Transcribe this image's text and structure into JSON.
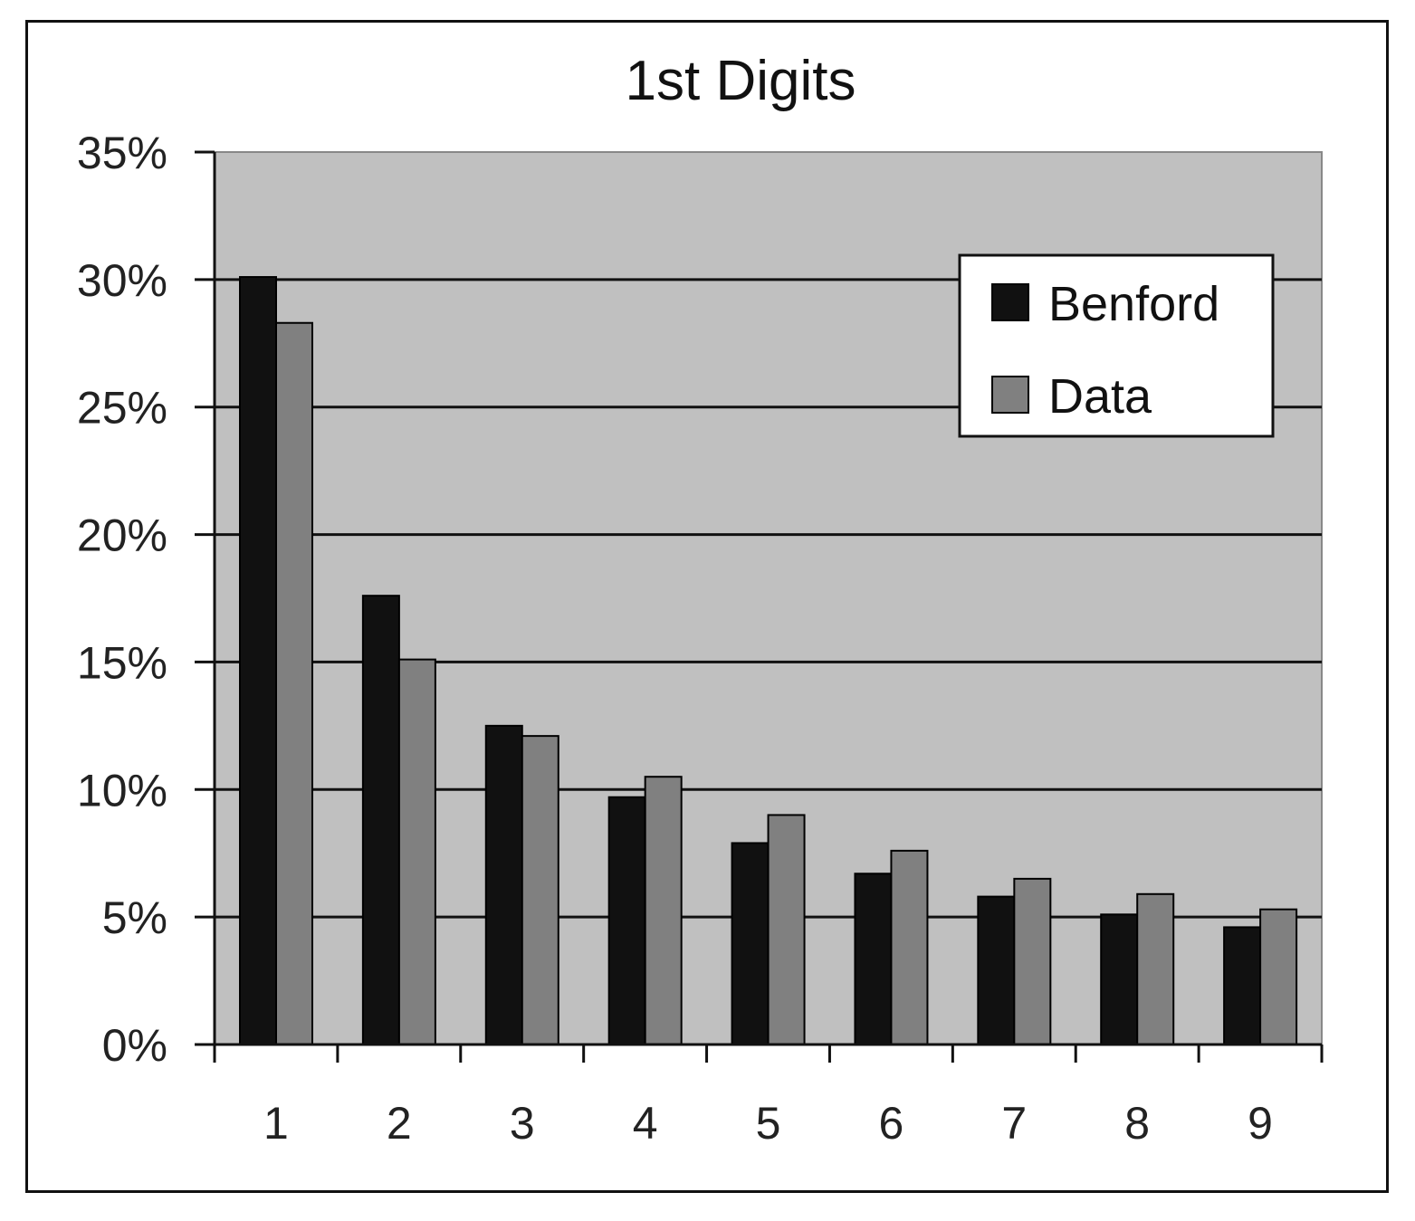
{
  "chart_data": {
    "type": "bar",
    "title": "1st Digits",
    "xlabel": "",
    "ylabel": "",
    "categories": [
      "1",
      "2",
      "3",
      "4",
      "5",
      "6",
      "7",
      "8",
      "9"
    ],
    "series": [
      {
        "name": "Benford",
        "values": [
          30.1,
          17.6,
          12.5,
          9.7,
          7.9,
          6.7,
          5.8,
          5.1,
          4.6
        ]
      },
      {
        "name": "Data",
        "values": [
          28.3,
          15.1,
          12.1,
          10.5,
          9.0,
          7.6,
          6.5,
          5.9,
          5.3
        ]
      }
    ],
    "ylim": [
      0,
      35
    ],
    "yticks": [
      "0%",
      "5%",
      "10%",
      "15%",
      "20%",
      "25%",
      "30%",
      "35%"
    ],
    "grid": true,
    "legend_position": "top-right",
    "colors": {
      "Benford": "#111111",
      "Data": "#808080",
      "plot_background": "#c0c0c0"
    }
  }
}
